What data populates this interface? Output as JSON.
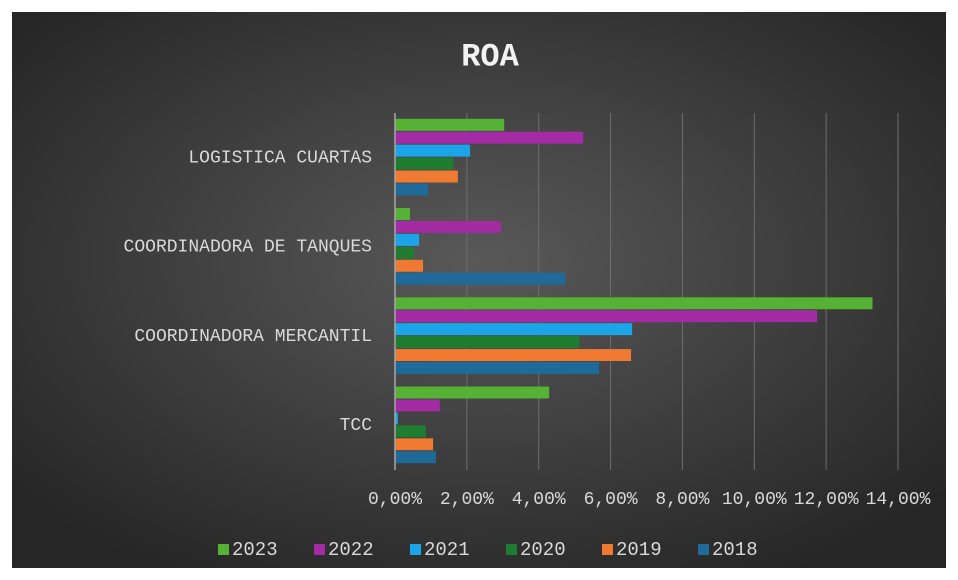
{
  "chart_data": {
    "type": "bar",
    "orientation": "horizontal",
    "title": "ROA",
    "categories": [
      "TCC",
      "COORDINADORA MERCANTIL",
      "COORDINADORA DE TANQUES",
      "LOGISTICA CUARTAS"
    ],
    "series": [
      {
        "name": "2023",
        "color": "#56b234",
        "values": [
          4.29,
          13.29,
          0.42,
          3.04
        ]
      },
      {
        "name": "2022",
        "color": "#a32ba3",
        "values": [
          1.25,
          11.75,
          2.95,
          5.24
        ]
      },
      {
        "name": "2021",
        "color": "#1ba5e8",
        "values": [
          0.08,
          6.6,
          0.67,
          2.09
        ]
      },
      {
        "name": "2020",
        "color": "#1f7d31",
        "values": [
          0.86,
          5.13,
          0.53,
          1.62
        ]
      },
      {
        "name": "2019",
        "color": "#f07a32",
        "values": [
          1.06,
          6.57,
          0.78,
          1.75
        ]
      },
      {
        "name": "2018",
        "color": "#1f6a98",
        "values": [
          1.14,
          5.68,
          4.74,
          0.92
        ]
      }
    ],
    "xlim": [
      0,
      14
    ],
    "xticks": [
      {
        "value": 0,
        "label": "0,00%"
      },
      {
        "value": 2,
        "label": "2,00%"
      },
      {
        "value": 4,
        "label": "4,00%"
      },
      {
        "value": 6,
        "label": "6,00%"
      },
      {
        "value": 8,
        "label": "8,00%"
      },
      {
        "value": 10,
        "label": "10,00%"
      },
      {
        "value": 12,
        "label": "12,00%"
      },
      {
        "value": 14,
        "label": "14,00%"
      }
    ],
    "grid": true,
    "legend": "bottom"
  }
}
